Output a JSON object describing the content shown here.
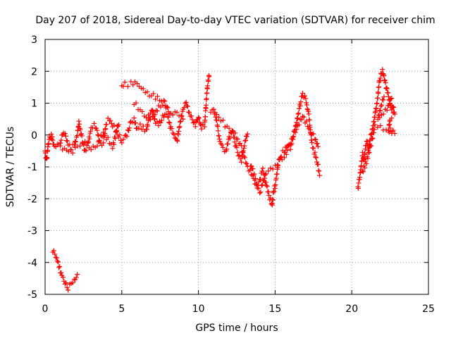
{
  "chart_data": {
    "type": "scatter",
    "title": "Day 207 of 2018, Sidereal Day-to-day VTEC variation (SDTVAR) for receiver chim",
    "xlabel": "GPS time / hours",
    "ylabel": "SDTVAR / TECUs",
    "xlim": [
      0,
      25
    ],
    "ylim": [
      -5,
      3
    ],
    "xticks": [
      "0",
      "5",
      "10",
      "15",
      "20",
      "25"
    ],
    "yticks": [
      "3",
      "2",
      "1",
      "0",
      "-1",
      "-2",
      "-3",
      "-4",
      "-5"
    ],
    "grid": true,
    "marker": "+",
    "color": "#ff0000",
    "series": [
      {
        "name": "SDTVAR",
        "points": [
          [
            0.0,
            -0.5
          ],
          [
            0.1,
            -0.8
          ],
          [
            0.2,
            -0.3
          ],
          [
            0.3,
            -0.1
          ],
          [
            0.4,
            0.0
          ],
          [
            0.5,
            -0.2
          ],
          [
            0.6,
            -0.4
          ],
          [
            0.8,
            -0.3
          ],
          [
            1.0,
            -0.2
          ],
          [
            1.2,
            0.1
          ],
          [
            1.3,
            0.05
          ],
          [
            1.5,
            -0.3
          ],
          [
            1.7,
            -0.4
          ],
          [
            1.9,
            -0.3
          ],
          [
            2.1,
            0.0
          ],
          [
            2.2,
            0.4
          ],
          [
            2.4,
            -0.1
          ],
          [
            2.6,
            -0.5
          ],
          [
            2.8,
            -0.3
          ],
          [
            3.0,
            0.2
          ],
          [
            3.2,
            0.3
          ],
          [
            3.4,
            0.1
          ],
          [
            3.6,
            -0.3
          ],
          [
            3.8,
            -0.2
          ],
          [
            4.0,
            0.4
          ],
          [
            4.2,
            0.5
          ],
          [
            4.4,
            0.3
          ],
          [
            4.6,
            0.2
          ],
          [
            4.8,
            0.0
          ],
          [
            5.0,
            -0.2
          ],
          [
            5.2,
            -0.1
          ],
          [
            5.4,
            0.1
          ],
          [
            5.6,
            0.4
          ],
          [
            5.8,
            0.5
          ],
          [
            6.0,
            0.2
          ],
          [
            6.2,
            0.3
          ],
          [
            6.4,
            0.2
          ],
          [
            6.6,
            0.1
          ],
          [
            6.8,
            0.6
          ],
          [
            7.0,
            0.8
          ],
          [
            7.2,
            0.4
          ],
          [
            7.4,
            0.3
          ],
          [
            7.6,
            0.5
          ],
          [
            7.8,
            0.7
          ],
          [
            8.0,
            0.6
          ],
          [
            8.2,
            0.2
          ],
          [
            8.4,
            0.0
          ],
          [
            8.6,
            -0.2
          ],
          [
            8.8,
            0.4
          ],
          [
            9.0,
            0.8
          ],
          [
            9.2,
            1.0
          ],
          [
            9.4,
            0.7
          ],
          [
            9.6,
            0.5
          ],
          [
            9.8,
            0.3
          ],
          [
            10.0,
            0.6
          ],
          [
            10.2,
            0.2
          ],
          [
            10.4,
            0.3
          ],
          [
            10.5,
            1.0
          ],
          [
            10.6,
            1.6
          ],
          [
            10.7,
            1.9
          ],
          [
            10.8,
            0.7
          ],
          [
            11.0,
            0.8
          ],
          [
            11.2,
            0.4
          ],
          [
            11.4,
            -0.2
          ],
          [
            11.6,
            -0.4
          ],
          [
            11.8,
            -0.5
          ],
          [
            12.0,
            -0.1
          ],
          [
            12.2,
            0.2
          ],
          [
            12.4,
            -0.3
          ],
          [
            12.6,
            -0.6
          ],
          [
            12.8,
            -0.8
          ],
          [
            13.0,
            -0.3
          ],
          [
            13.2,
            0.1
          ],
          [
            13.4,
            -0.9
          ],
          [
            13.6,
            -1.2
          ],
          [
            13.8,
            -1.6
          ],
          [
            14.0,
            -1.4
          ],
          [
            14.2,
            -1.1
          ],
          [
            14.4,
            -1.5
          ],
          [
            14.6,
            -1.9
          ],
          [
            14.8,
            -2.2
          ],
          [
            14.9,
            -1.8
          ],
          [
            15.0,
            -1.6
          ],
          [
            15.2,
            -0.9
          ],
          [
            15.4,
            -0.6
          ],
          [
            15.6,
            -0.5
          ],
          [
            15.8,
            -0.3
          ],
          [
            16.0,
            -0.4
          ],
          [
            16.2,
            0.0
          ],
          [
            16.4,
            0.4
          ],
          [
            16.6,
            0.9
          ],
          [
            16.8,
            1.3
          ],
          [
            17.0,
            1.1
          ],
          [
            17.2,
            0.6
          ],
          [
            17.4,
            -0.3
          ],
          [
            17.6,
            -0.6
          ],
          [
            17.8,
            -1.0
          ],
          [
            17.9,
            -1.2
          ],
          [
            0.5,
            -3.6
          ],
          [
            0.7,
            -3.8
          ],
          [
            0.9,
            -4.1
          ],
          [
            1.1,
            -4.4
          ],
          [
            1.3,
            -4.6
          ],
          [
            1.5,
            -4.8
          ],
          [
            1.7,
            -4.7
          ],
          [
            1.9,
            -4.6
          ],
          [
            2.1,
            -4.4
          ],
          [
            5.0,
            1.5
          ],
          [
            5.2,
            1.6
          ],
          [
            5.6,
            1.6
          ],
          [
            6.0,
            1.6
          ],
          [
            6.4,
            1.4
          ],
          [
            6.8,
            1.3
          ],
          [
            7.2,
            1.2
          ],
          [
            7.6,
            1.1
          ],
          [
            8.0,
            0.9
          ],
          [
            5.8,
            1.0
          ],
          [
            6.2,
            0.8
          ],
          [
            6.6,
            0.6
          ],
          [
            7.0,
            0.5
          ],
          [
            7.4,
            0.9
          ],
          [
            7.8,
            1.0
          ],
          [
            8.2,
            0.6
          ],
          [
            8.6,
            0.7
          ],
          [
            9.0,
            0.5
          ],
          [
            1.0,
            -0.4
          ],
          [
            1.4,
            -0.5
          ],
          [
            1.8,
            -0.5
          ],
          [
            2.6,
            -0.2
          ],
          [
            3.0,
            -0.4
          ],
          [
            3.4,
            -0.3
          ],
          [
            3.8,
            0.1
          ],
          [
            4.4,
            -0.4
          ],
          [
            4.8,
            0.4
          ],
          [
            11.2,
            0.6
          ],
          [
            11.6,
            0.4
          ],
          [
            12.0,
            0.2
          ],
          [
            12.4,
            0.0
          ],
          [
            12.8,
            -0.4
          ],
          [
            13.2,
            -1.0
          ],
          [
            13.6,
            -1.4
          ],
          [
            14.0,
            -1.8
          ],
          [
            14.4,
            -1.2
          ],
          [
            15.6,
            -0.7
          ],
          [
            16.0,
            -0.2
          ],
          [
            16.4,
            0.2
          ],
          [
            16.8,
            0.6
          ],
          [
            17.2,
            0.2
          ],
          [
            17.6,
            -0.1
          ],
          [
            17.8,
            -0.4
          ],
          [
            20.4,
            -1.7
          ],
          [
            20.5,
            -1.4
          ],
          [
            20.6,
            -1.0
          ],
          [
            20.7,
            -0.6
          ],
          [
            20.8,
            -0.8
          ],
          [
            20.9,
            -0.4
          ],
          [
            21.0,
            -0.2
          ],
          [
            21.1,
            -0.5
          ],
          [
            21.2,
            -0.1
          ],
          [
            21.3,
            0.1
          ],
          [
            21.4,
            0.3
          ],
          [
            21.5,
            0.6
          ],
          [
            21.6,
            0.9
          ],
          [
            21.7,
            1.2
          ],
          [
            21.8,
            1.7
          ],
          [
            21.9,
            1.9
          ],
          [
            22.0,
            2.0
          ],
          [
            22.1,
            1.8
          ],
          [
            22.2,
            1.6
          ],
          [
            22.3,
            1.4
          ],
          [
            22.4,
            1.2
          ],
          [
            22.5,
            1.0
          ],
          [
            22.6,
            0.8
          ],
          [
            22.7,
            0.9
          ],
          [
            22.8,
            0.7
          ],
          [
            22.5,
            0.5
          ],
          [
            22.4,
            0.2
          ],
          [
            22.6,
            0.1
          ],
          [
            22.8,
            0.05
          ],
          [
            21.5,
            0.3
          ],
          [
            21.3,
            -0.2
          ],
          [
            21.1,
            -0.6
          ],
          [
            20.9,
            -0.9
          ],
          [
            20.7,
            -1.2
          ],
          [
            22.1,
            1.2
          ],
          [
            21.9,
            0.9
          ],
          [
            21.7,
            0.5
          ],
          [
            22.3,
            0.8
          ],
          [
            22.6,
            1.2
          ]
        ]
      }
    ]
  }
}
